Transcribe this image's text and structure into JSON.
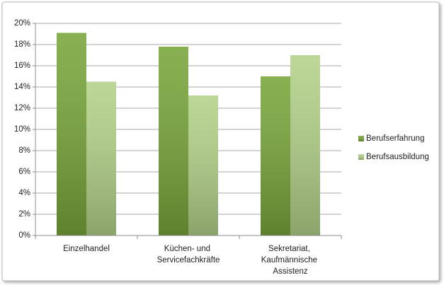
{
  "chart_data": {
    "type": "bar",
    "categories": [
      "Einzelhandel",
      "Küchen- und Servicefachkräfte",
      "Sekretariat, Kaufmännische Assistenz"
    ],
    "series": [
      {
        "name": "Berufserfahrung",
        "color": "#78a53a",
        "values": [
          19.1,
          17.8,
          15.0
        ]
      },
      {
        "name": "Berufsausbildung",
        "color": "#b3d189",
        "values": [
          14.5,
          13.2,
          17.0
        ]
      }
    ],
    "ylim": [
      0,
      20
    ],
    "yticks": [
      {
        "value": 0,
        "label": "0%"
      },
      {
        "value": 2,
        "label": "2%"
      },
      {
        "value": 4,
        "label": "4%"
      },
      {
        "value": 6,
        "label": "6%"
      },
      {
        "value": 8,
        "label": "8%"
      },
      {
        "value": 10,
        "label": "10%"
      },
      {
        "value": 12,
        "label": "12%"
      },
      {
        "value": 14,
        "label": "14%"
      },
      {
        "value": 16,
        "label": "16%"
      },
      {
        "value": 18,
        "label": "18%"
      },
      {
        "value": 20,
        "label": "20%"
      }
    ],
    "grid": true,
    "legend": "right"
  }
}
